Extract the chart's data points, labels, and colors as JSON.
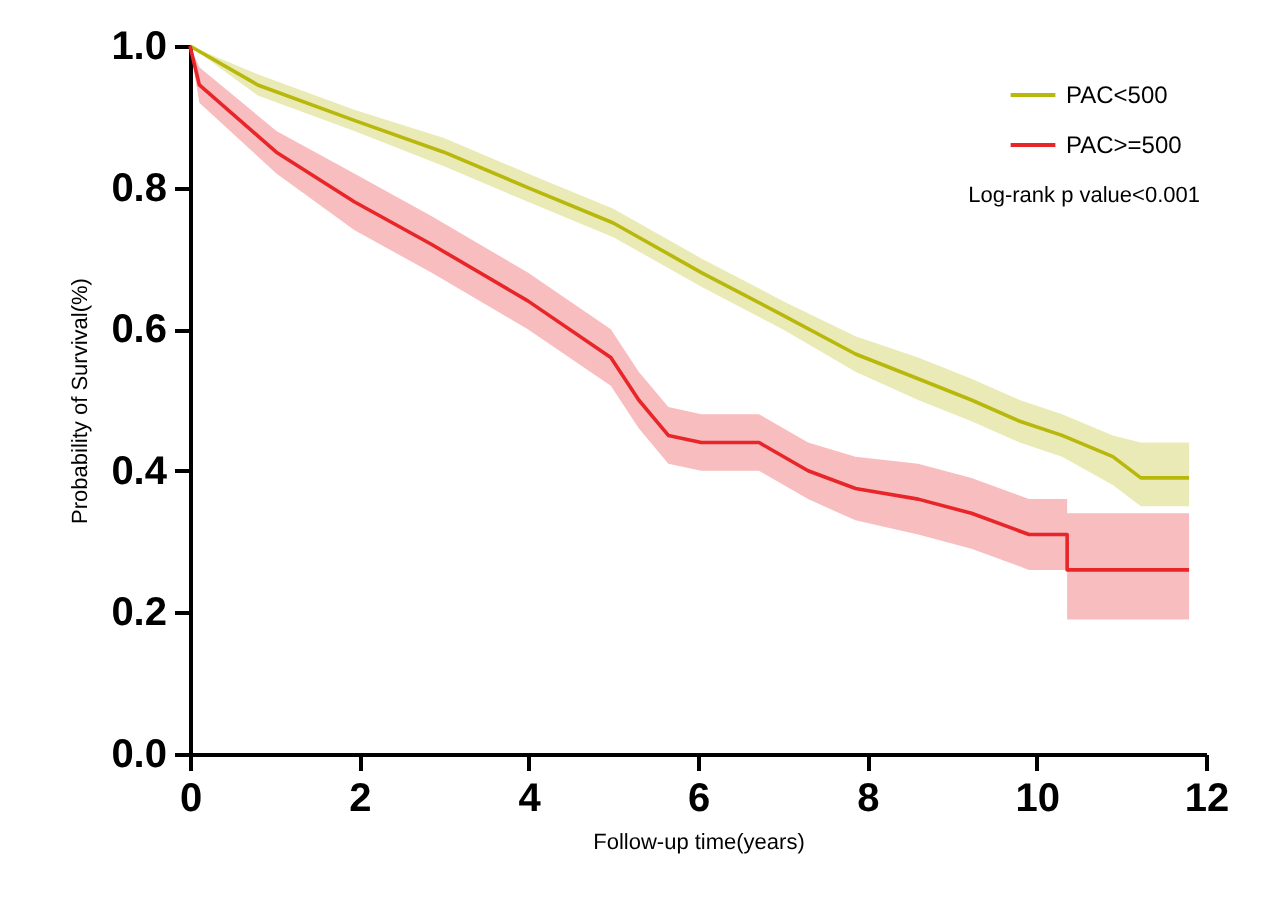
{
  "chart_data": {
    "type": "line",
    "xlabel": "Follow-up time(years)",
    "ylabel": "Probability of Survival(%)",
    "xlim": [
      0,
      12
    ],
    "xticks": [
      0,
      2,
      4,
      6,
      8,
      10,
      12
    ],
    "ylim": [
      0,
      1
    ],
    "yticks": [
      {
        "value": 0,
        "label": "0.0"
      },
      {
        "value": 0.2,
        "label": "0.2"
      },
      {
        "value": 0.4,
        "label": "0.4"
      },
      {
        "value": 0.6,
        "label": "0.6"
      },
      {
        "value": 0.8,
        "label": "0.8"
      },
      {
        "value": 1,
        "label": "1.0"
      }
    ],
    "grid": false,
    "legend": "top right",
    "line_style": "solid",
    "annotations": [
      "Log-rank p value<0.001"
    ],
    "series": [
      {
        "name": "PAC<500",
        "color": "#b8b80c",
        "x": [
          0,
          0.8,
          1.94,
          3.0,
          3.99,
          5.0,
          6.04,
          7.0,
          7.86,
          8.6,
          9.23,
          9.8,
          10.3,
          10.9,
          11.23,
          11.8
        ],
        "values": [
          1.0,
          0.945,
          0.895,
          0.85,
          0.8,
          0.75,
          0.68,
          0.62,
          0.565,
          0.53,
          0.5,
          0.47,
          0.45,
          0.42,
          0.39,
          0.39
        ],
        "lower": [
          1.0,
          0.93,
          0.88,
          0.83,
          0.78,
          0.73,
          0.66,
          0.6,
          0.54,
          0.5,
          0.47,
          0.44,
          0.42,
          0.38,
          0.35,
          0.35
        ],
        "upper": [
          1.0,
          0.96,
          0.91,
          0.87,
          0.82,
          0.77,
          0.7,
          0.64,
          0.59,
          0.56,
          0.53,
          0.5,
          0.48,
          0.45,
          0.44,
          0.44
        ]
      },
      {
        "name": "PAC>=500",
        "color": "#e8262a",
        "x": [
          0,
          0.11,
          1.02,
          1.94,
          2.85,
          3.99,
          4.97,
          5.3,
          5.65,
          6.04,
          6.72,
          7.3,
          7.86,
          8.6,
          9.23,
          9.91,
          10.36,
          10.36,
          11.8
        ],
        "values": [
          1.0,
          0.945,
          0.85,
          0.78,
          0.72,
          0.64,
          0.56,
          0.5,
          0.45,
          0.44,
          0.44,
          0.4,
          0.375,
          0.36,
          0.34,
          0.31,
          0.31,
          0.26,
          0.26
        ],
        "lower": [
          1.0,
          0.92,
          0.82,
          0.74,
          0.68,
          0.6,
          0.52,
          0.46,
          0.41,
          0.4,
          0.4,
          0.36,
          0.33,
          0.31,
          0.29,
          0.26,
          0.26,
          0.19,
          0.19
        ],
        "upper": [
          1.0,
          0.97,
          0.88,
          0.82,
          0.76,
          0.68,
          0.6,
          0.54,
          0.49,
          0.48,
          0.48,
          0.44,
          0.42,
          0.41,
          0.39,
          0.36,
          0.36,
          0.34,
          0.34
        ]
      }
    ]
  }
}
